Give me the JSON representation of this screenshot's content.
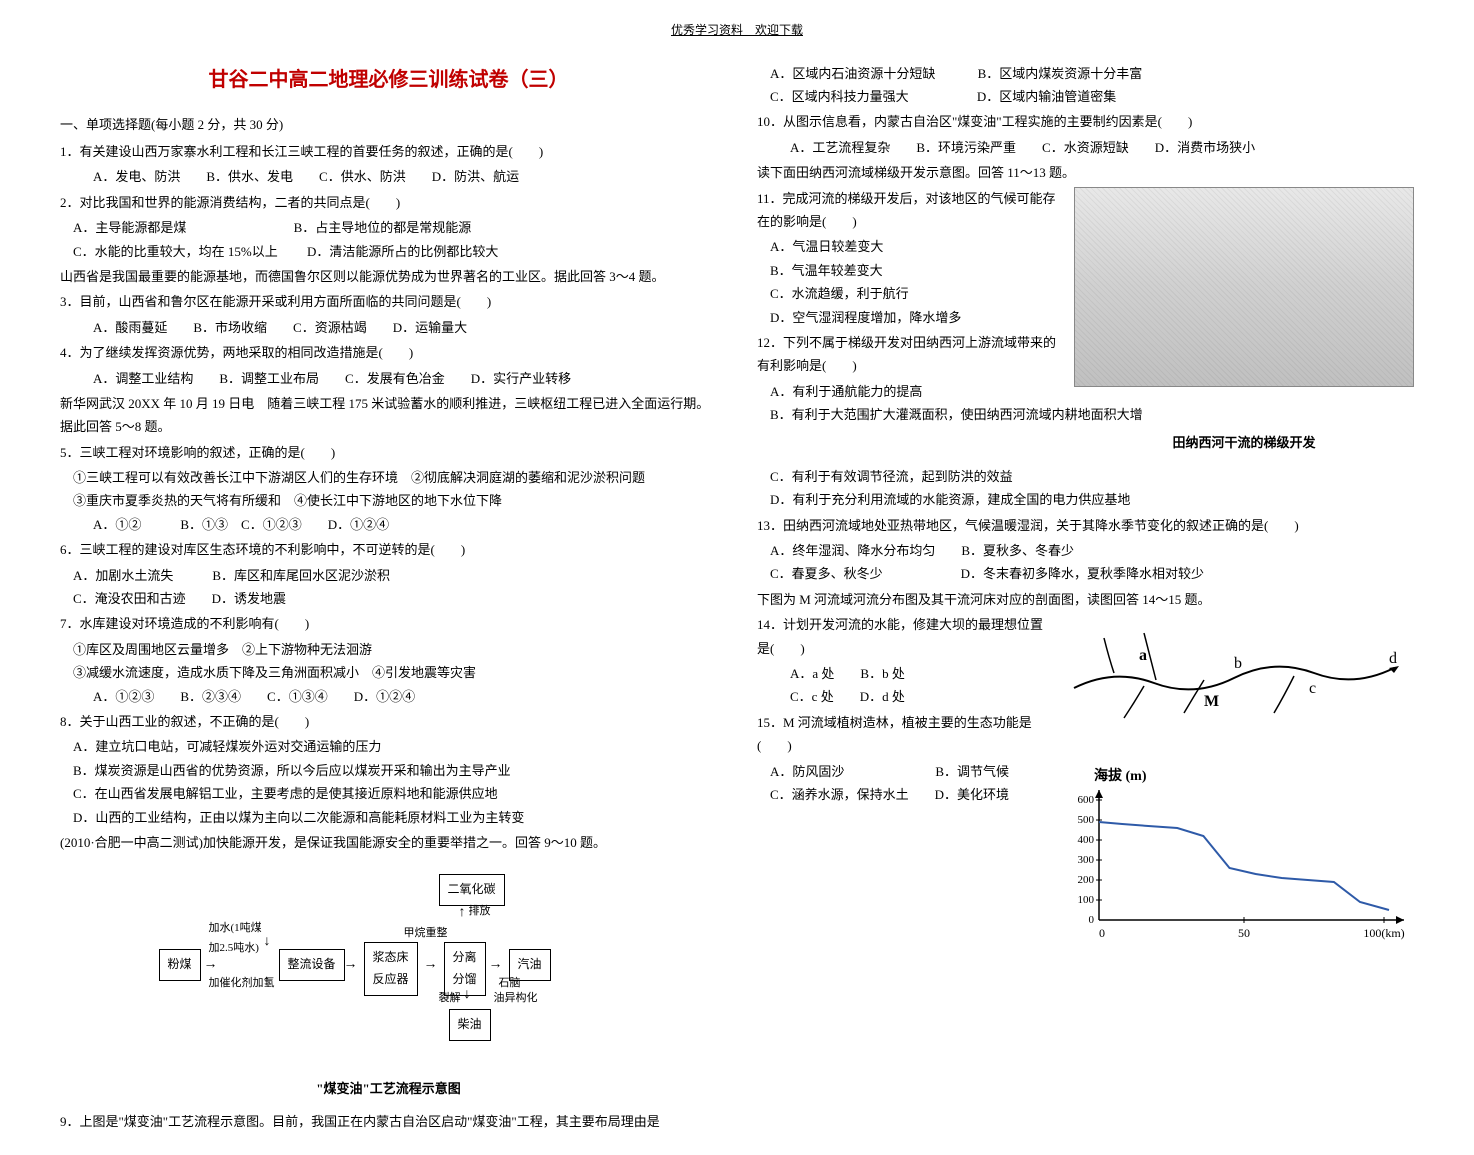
{
  "header": "优秀学习资料　欢迎下载",
  "title": "甘谷二中高二地理必修三训练试卷（三）",
  "section1": "一、单项选择题(每小题 2 分，共 30 分)",
  "q1": {
    "stem": "1．有关建设山西万家寨水利工程和长江三峡工程的首要任务的叙述，正确的是(　　)",
    "opts": "　A．发电、防洪　　B．供水、发电　　C．供水、防洪　　D．防洪、航运"
  },
  "q2": {
    "stem": "2．对比我国和世界的能源消费结构，二者的共同点是(　　)",
    "a": "　A．主导能源都是煤",
    "b": "　　　　　　　　B．占主导地位的都是常规能源",
    "c": "　C．水能的比重较大，均在 15%以上",
    "d": "　　D．清洁能源所占的比例都比较大"
  },
  "ctx3": "山西省是我国最重要的能源基地，而德国鲁尔区则以能源优势成为世界著名的工业区。据此回答 3～4 题。",
  "q3": {
    "stem": "3．目前，山西省和鲁尔区在能源开采或利用方面所面临的共同问题是(　　)",
    "opts": "　A．酸雨蔓延　　B．市场收缩　　C．资源枯竭　　D．运输量大"
  },
  "q4": {
    "stem": "4．为了继续发挥资源优势，两地采取的相同改造措施是(　　)",
    "opts": "　A．调整工业结构　　B．调整工业布局　　C．发展有色冶金　　D．实行产业转移"
  },
  "ctx5": "新华网武汉 20XX 年 10 月 19 日电　随着三峡工程 175 米试验蓄水的顺利推进，三峡枢纽工程已进入全面运行期。据此回答 5～8 题。",
  "q5": {
    "stem": "5．三峡工程对环境影响的叙述，正确的是(　　)",
    "l1": "　①三峡工程可以有效改善长江中下游湖区人们的生存环境　②彻底解决洞庭湖的萎缩和泥沙淤积问题",
    "l2": "　③重庆市夏季炎热的天气将有所缓和　④使长江中下游地区的地下水位下降",
    "opts": "　A．①②　　　B．①③　C．①②③　　D．①②④"
  },
  "q6": {
    "stem": "6．三峡工程的建设对库区生态环境的不利影响中，不可逆转的是(　　)",
    "a": "　A．加剧水土流失　　　B．库区和库尾回水区泥沙淤积",
    "c": "　C．淹没农田和古迹　　D．诱发地震"
  },
  "q7": {
    "stem": "7．水库建设对环境造成的不利影响有(　　)",
    "l1": "　①库区及周围地区云量增多　②上下游物种无法洄游",
    "l2": "　③减缓水流速度，造成水质下降及三角洲面积减小　④引发地震等灾害",
    "opts": "　A．①②③　　B．②③④　　C．①③④　　D．①②④"
  },
  "q8": {
    "stem": "8．关于山西工业的叙述，不正确的是(　　)",
    "a": "　A．建立坑口电站，可减轻煤炭外运对交通运输的压力",
    "b": "　B．煤炭资源是山西省的优势资源，所以今后应以煤炭开采和输出为主导产业",
    "c": "　C．在山西省发展电解铝工业，主要考虑的是使其接近原料地和能源供应地",
    "d": "　D．山西的工业结构，正由以煤为主向以二次能源和高能耗原材料工业为主转变"
  },
  "ctx9": "(2010·合肥一中高二测试)加快能源开发，是保证我国能源安全的重要举措之一。回答 9～10 题。",
  "process": {
    "co2": "二氧化碳",
    "emit": "排放",
    "water": "加水(1吨煤\n加2.5吨水)",
    "fenmei": "粉煤",
    "catalyst": "加催化剂加氢",
    "zhengliu": "整流设备",
    "jct": "浆态床\n反应器",
    "jwzz": "甲烷重整",
    "separate": "分离\n分馏",
    "qiyou": "汽油",
    "shinao": "石脑",
    "liefen": "裂解",
    "yigouhua": "油异构化",
    "chaiyou": "柴油",
    "caption": "\"煤变油\"工艺流程示意图"
  },
  "q9": "9．上图是\"煤变油\"工艺流程示意图。目前，我国正在内蒙古自治区启动\"煤变油\"工程，其主要布局理由是",
  "q9opts": {
    "a": "　A．区域内石油资源十分短缺",
    "b": "　　　B．区域内煤炭资源十分丰富",
    "c": "　C．区域内科技力量强大",
    "d": "　　　　　D．区域内输油管道密集"
  },
  "q10": {
    "stem": "10．从图示信息看，内蒙古自治区\"煤变油\"工程实施的主要制约因素是(　　)",
    "opts": "　A．工艺流程复杂　　B．环境污染严重　　C．水资源短缺　　D．消费市场狭小"
  },
  "ctx11": "读下面田纳西河流域梯级开发示意图。回答 11～13 题。",
  "river_caption": "田纳西河干流的梯级开发",
  "q11": {
    "stem": "11．完成河流的梯级开发后，对该地区的气候可能存在的影响是(　　)",
    "a": "　A．气温日较差变大",
    "b": "　B．气温年较差变大",
    "c": "　C．水流趋缓，利于航行",
    "d": "　D．空气湿润程度增加，降水增多"
  },
  "q12": {
    "stem": "12．下列不属于梯级开发对田纳西河上游流域带来的有利影响是(　　)",
    "a": "　A．有利于通航能力的提高",
    "b": "　B．有利于大范围扩大灌溉面积，使田纳西河流域内耕地面积大增",
    "c": "　C．有利于有效调节径流，起到防洪的效益",
    "d": "　D．有利于充分利用流域的水能资源，建成全国的电力供应基地"
  },
  "q13": {
    "stem": "13．田纳西河流域地处亚热带地区，气候温暖湿润，关于其降水季节变化的叙述正确的是(　　)",
    "a": "　A．终年湿润、降水分布均匀　　B．夏秋多、冬春少",
    "c": "　C．春夏多、秋冬少　　　　　　D．冬末春初多降水，夏秋季降水相对较少"
  },
  "ctx14": "下图为 M 河流域河流分布图及其干流河床对应的剖面图，读图回答 14～15 题。",
  "q14": {
    "stem": "14．计划开发河流的水能，修建大坝的最理想位置是(　　)",
    "opts": "　A．a 处　　B．b 处\n　C．c 处　　D．d 处"
  },
  "q15": {
    "stem": "15．M 河流域植树造林，植被主要的生态功能是(　　)",
    "a": "　A．防风固沙　　　　　　　B．调节气候",
    "c": "　C．涵养水源，保持水土　　D．美化环境"
  },
  "elev": {
    "title": "海拔 (m)",
    "yticks": [
      "600",
      "500",
      "400",
      "300",
      "200",
      "100",
      "0"
    ],
    "xticks": [
      "0",
      "50",
      "100(km)"
    ],
    "line_color": "#2e5aa8",
    "axis_color": "#000",
    "points_x": [
      0,
      8,
      17,
      27,
      36,
      45,
      54,
      63,
      72,
      81,
      90,
      100
    ],
    "points_y": [
      490,
      480,
      470,
      460,
      420,
      260,
      230,
      210,
      200,
      190,
      90,
      50
    ]
  },
  "map": {
    "labels": {
      "a": "a",
      "b": "b",
      "c": "c",
      "d": "d",
      "M": "M"
    },
    "river_color": "#000",
    "label_fontsize": 14
  }
}
